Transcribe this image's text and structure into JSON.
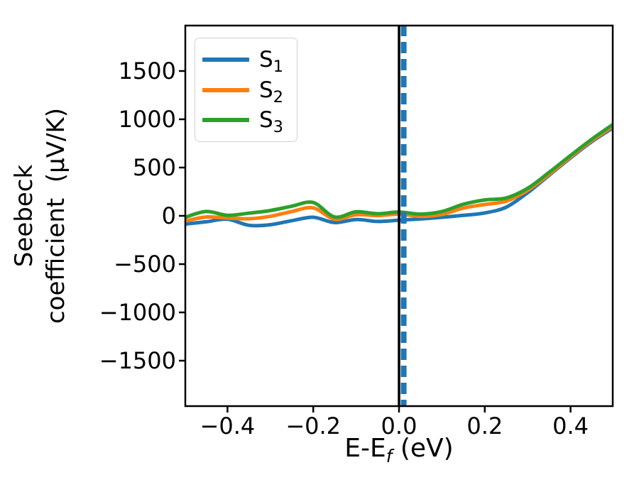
{
  "chart_data": {
    "type": "line",
    "title": "",
    "xlabel": {
      "main": "E-E",
      "sub": "f",
      "unit": " (eV)"
    },
    "ylabel": {
      "line1": "Seebeck",
      "line2": "coefficient  (μV/K)"
    },
    "xlim": [
      -0.5,
      0.5
    ],
    "ylim": [
      -1978,
      1978
    ],
    "grid": false,
    "legend_position": "upper left",
    "axis_color": "#000000",
    "xticks": {
      "values": [
        -0.4,
        -0.2,
        0.0,
        0.2,
        0.4
      ],
      "labels": [
        "−0.4",
        "−0.2",
        "0.0",
        "0.2",
        "0.4"
      ]
    },
    "yticks": {
      "values": [
        1500,
        1000,
        500,
        0,
        -500,
        -1000,
        -1500
      ],
      "labels": [
        "1500",
        "1000",
        "500",
        "0",
        "−500",
        "−1000",
        "−1500"
      ]
    },
    "x_eV": [
      -0.5,
      -0.45,
      -0.4,
      -0.35,
      -0.3,
      -0.25,
      -0.2,
      -0.15,
      -0.1,
      -0.05,
      0.0,
      0.05,
      0.1,
      0.15,
      0.2,
      0.25,
      0.3,
      0.35,
      0.4,
      0.45,
      0.5
    ],
    "series": [
      {
        "name": "S1",
        "label": "S",
        "label_sub": "1",
        "color": "#1f77b4",
        "values": [
          -85,
          -62,
          -35,
          -98,
          -92,
          -50,
          -15,
          -70,
          -38,
          -58,
          -45,
          -32,
          -15,
          5,
          30,
          90,
          240,
          420,
          600,
          770,
          915
        ]
      },
      {
        "name": "S2",
        "label": "S",
        "label_sub": "2",
        "color": "#ff7f0e",
        "values": [
          -55,
          -12,
          -22,
          -30,
          -5,
          45,
          82,
          -35,
          12,
          3,
          18,
          -5,
          15,
          80,
          118,
          152,
          265,
          430,
          610,
          780,
          930
        ]
      },
      {
        "name": "S3",
        "label": "S",
        "label_sub": "3",
        "color": "#2ca02c",
        "values": [
          -18,
          45,
          6,
          28,
          55,
          100,
          138,
          -12,
          42,
          22,
          40,
          18,
          45,
          120,
          165,
          185,
          285,
          450,
          625,
          795,
          950
        ]
      }
    ],
    "vlines": [
      {
        "x": 0.0,
        "color": "#000000",
        "style": "solid",
        "width": 3.5
      },
      {
        "x": 0.011,
        "color": "#1f77b4",
        "style": "dashed",
        "width": 8
      }
    ]
  }
}
